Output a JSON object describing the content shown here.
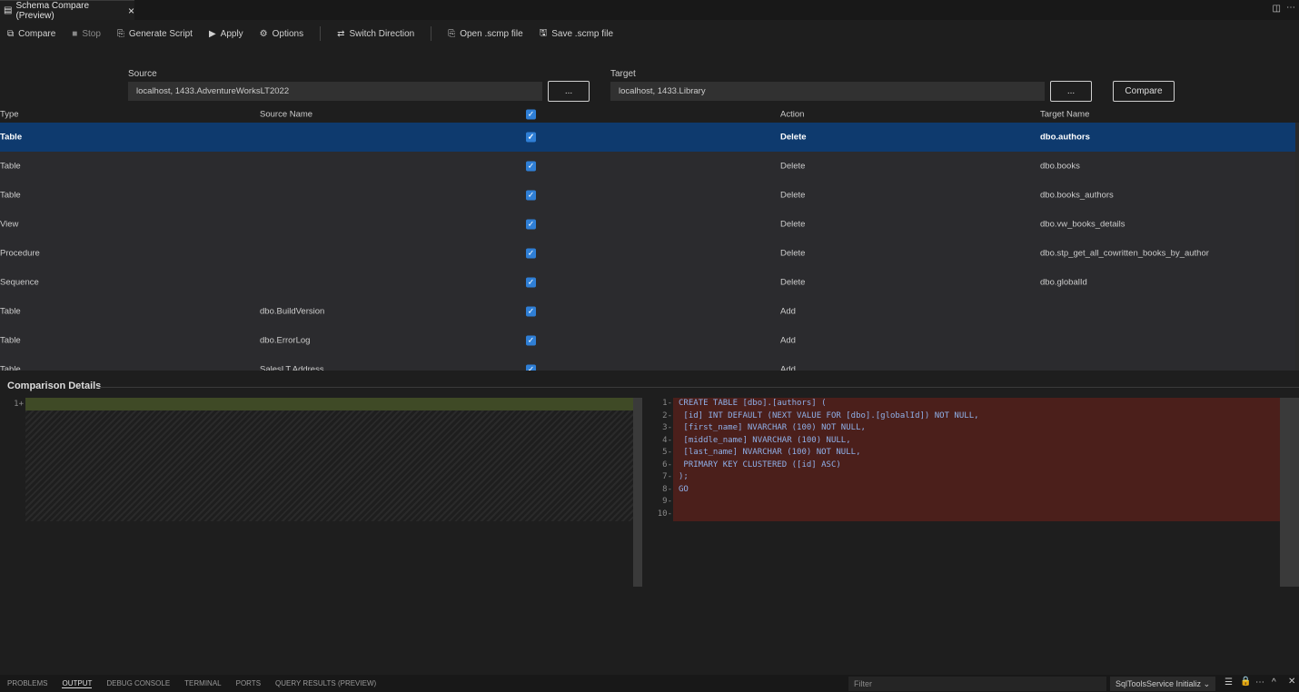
{
  "tab": {
    "title": "Schema Compare (Preview)",
    "close": "×"
  },
  "toolbar": [
    {
      "label": "Compare",
      "icon": "compare-icon",
      "enabled": true
    },
    {
      "label": "Stop",
      "icon": "stop-icon",
      "enabled": false
    },
    {
      "label": "Generate Script",
      "icon": "script-icon",
      "enabled": true
    },
    {
      "label": "Apply",
      "icon": "play-icon",
      "enabled": true
    },
    {
      "label": "Options",
      "icon": "gear-icon",
      "enabled": true
    },
    {
      "label": "Switch Direction",
      "icon": "switch-icon",
      "enabled": true
    },
    {
      "label": "Open .scmp file",
      "icon": "open-file-icon",
      "enabled": true
    },
    {
      "label": "Save .scmp file",
      "icon": "save-icon",
      "enabled": true
    }
  ],
  "source": {
    "label": "Source",
    "value": "localhost, 1433.AdventureWorksLT2022",
    "browse": "..."
  },
  "target": {
    "label": "Target",
    "value": "localhost, 1433.Library",
    "browse": "...",
    "compare": "Compare"
  },
  "table": {
    "headers": {
      "type": "Type",
      "source": "Source Name",
      "action": "Action",
      "target": "Target Name"
    },
    "rows": [
      {
        "type": "Table",
        "source": "",
        "action": "Delete",
        "target": "dbo.authors",
        "selected": true
      },
      {
        "type": "Table",
        "source": "",
        "action": "Delete",
        "target": "dbo.books"
      },
      {
        "type": "Table",
        "source": "",
        "action": "Delete",
        "target": "dbo.books_authors"
      },
      {
        "type": "View",
        "source": "",
        "action": "Delete",
        "target": "dbo.vw_books_details"
      },
      {
        "type": "Procedure",
        "source": "",
        "action": "Delete",
        "target": "dbo.stp_get_all_cowritten_books_by_author"
      },
      {
        "type": "Sequence",
        "source": "",
        "action": "Delete",
        "target": "dbo.globalId"
      },
      {
        "type": "Table",
        "source": "dbo.BuildVersion",
        "action": "Add",
        "target": ""
      },
      {
        "type": "Table",
        "source": "dbo.ErrorLog",
        "action": "Add",
        "target": ""
      },
      {
        "type": "Table",
        "source": "SalesLT.Address",
        "action": "Add",
        "target": ""
      }
    ]
  },
  "details": {
    "title": "Comparison Details",
    "left_lines": [
      "1+"
    ],
    "right_lines": [
      {
        "n": "1-",
        "t": "CREATE TABLE [dbo].[authors] ("
      },
      {
        "n": "2-",
        "t": " [id] INT DEFAULT (NEXT VALUE FOR [dbo].[globalId]) NOT NULL,"
      },
      {
        "n": "3-",
        "t": " [first_name] NVARCHAR (100) NOT NULL,"
      },
      {
        "n": "4-",
        "t": " [middle_name] NVARCHAR (100) NULL,"
      },
      {
        "n": "5-",
        "t": " [last_name] NVARCHAR (100) NOT NULL,"
      },
      {
        "n": "6-",
        "t": " PRIMARY KEY CLUSTERED ([id] ASC)"
      },
      {
        "n": "7-",
        "t": ");"
      },
      {
        "n": "8-",
        "t": "GO"
      },
      {
        "n": "9-",
        "t": ""
      },
      {
        "n": "10-",
        "t": ""
      }
    ]
  },
  "panel": {
    "tabs": [
      "PROBLEMS",
      "OUTPUT",
      "DEBUG CONSOLE",
      "TERMINAL",
      "PORTS",
      "QUERY RESULTS (PREVIEW)"
    ],
    "active": 1,
    "filter_placeholder": "Filter",
    "channel": "SqlToolsService Initializ"
  }
}
